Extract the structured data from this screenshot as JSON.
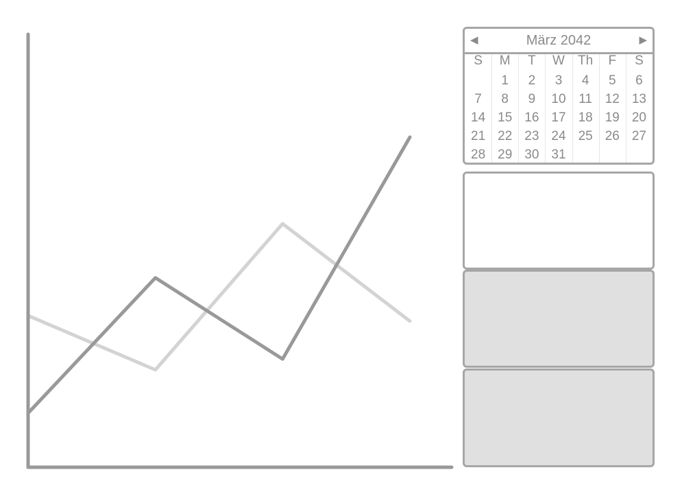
{
  "chart_data": {
    "type": "line",
    "x": [
      0,
      1,
      2,
      3
    ],
    "series": [
      {
        "values": [
          3,
          5.5,
          4,
          8.1
        ],
        "color": "#999999"
      },
      {
        "values": [
          4.8,
          3.8,
          6.5,
          4.7
        ],
        "color": "#d3d3d3"
      }
    ],
    "ylim": [
      2,
      10
    ],
    "grid": false
  },
  "calendar": {
    "title": "März 2042",
    "prev_icon": "◀",
    "next_icon": "▶",
    "weekdays": [
      "S",
      "M",
      "T",
      "W",
      "Th",
      "F",
      "S"
    ],
    "weeks": [
      [
        "",
        "1",
        "2",
        "3",
        "4",
        "5",
        "6"
      ],
      [
        "7",
        "8",
        "9",
        "10",
        "11",
        "12",
        "13"
      ],
      [
        "14",
        "15",
        "16",
        "17",
        "18",
        "19",
        "20"
      ],
      [
        "21",
        "22",
        "23",
        "24",
        "25",
        "26",
        "27"
      ],
      [
        "28",
        "29",
        "30",
        "31",
        "",
        "",
        ""
      ]
    ]
  },
  "colors": {
    "axis": "#999999",
    "panel_border": "#a6a6a6",
    "panel_fill_gray": "#e0e0e0"
  }
}
